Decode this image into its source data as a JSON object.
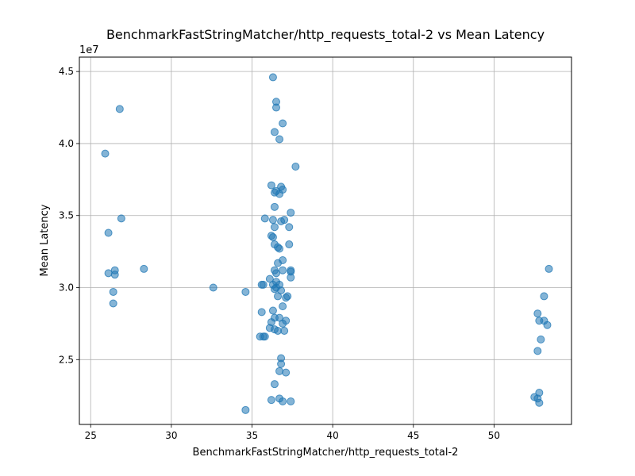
{
  "chart_data": {
    "type": "scatter",
    "title": "BenchmarkFastStringMatcher/http_requests_total-2 vs Mean Latency",
    "xlabel": "BenchmarkFastStringMatcher/http_requests_total-2",
    "ylabel": "Mean Latency",
    "y_multiplier_label": "1e7",
    "xlim": [
      24.3,
      54.8
    ],
    "ylim": [
      2.05,
      4.6
    ],
    "x_ticks": [
      25,
      30,
      35,
      40,
      45,
      50
    ],
    "x_tick_labels": [
      "25",
      "30",
      "35",
      "40",
      "45",
      "50"
    ],
    "y_ticks": [
      2.5,
      3.0,
      3.5,
      4.0,
      4.5
    ],
    "y_tick_labels": [
      "2.5",
      "3.0",
      "3.5",
      "4.0",
      "4.5"
    ],
    "grid": true,
    "point_color": "#1f77b4",
    "y_scale_factor": 10000000,
    "points": [
      [
        25.9,
        3.93
      ],
      [
        26.8,
        4.24
      ],
      [
        26.1,
        3.38
      ],
      [
        26.9,
        3.48
      ],
      [
        26.1,
        3.1
      ],
      [
        26.5,
        3.12
      ],
      [
        26.5,
        3.09
      ],
      [
        26.4,
        2.97
      ],
      [
        26.4,
        2.89
      ],
      [
        28.3,
        3.13
      ],
      [
        32.6,
        3.0
      ],
      [
        34.6,
        2.97
      ],
      [
        34.6,
        2.15
      ],
      [
        36.3,
        4.46
      ],
      [
        36.5,
        4.29
      ],
      [
        36.5,
        4.25
      ],
      [
        36.9,
        4.14
      ],
      [
        36.4,
        4.08
      ],
      [
        36.7,
        4.03
      ],
      [
        37.7,
        3.84
      ],
      [
        36.2,
        3.71
      ],
      [
        36.8,
        3.7
      ],
      [
        36.9,
        3.68
      ],
      [
        36.5,
        3.67
      ],
      [
        36.4,
        3.66
      ],
      [
        36.7,
        3.65
      ],
      [
        36.4,
        3.56
      ],
      [
        35.8,
        3.48
      ],
      [
        36.3,
        3.47
      ],
      [
        36.8,
        3.46
      ],
      [
        37.0,
        3.47
      ],
      [
        37.4,
        3.52
      ],
      [
        36.4,
        3.42
      ],
      [
        37.3,
        3.42
      ],
      [
        36.2,
        3.36
      ],
      [
        36.3,
        3.35
      ],
      [
        36.4,
        3.3
      ],
      [
        37.3,
        3.3
      ],
      [
        36.6,
        3.28
      ],
      [
        36.7,
        3.27
      ],
      [
        36.9,
        3.19
      ],
      [
        36.6,
        3.17
      ],
      [
        36.4,
        3.12
      ],
      [
        36.5,
        3.1
      ],
      [
        36.9,
        3.12
      ],
      [
        37.4,
        3.12
      ],
      [
        37.4,
        3.11
      ],
      [
        37.4,
        3.07
      ],
      [
        36.1,
        3.06
      ],
      [
        36.5,
        3.04
      ],
      [
        35.6,
        3.02
      ],
      [
        35.7,
        3.02
      ],
      [
        36.3,
        3.02
      ],
      [
        36.7,
        3.02
      ],
      [
        36.5,
        3.0
      ],
      [
        36.4,
        2.99
      ],
      [
        36.8,
        2.98
      ],
      [
        36.6,
        2.94
      ],
      [
        37.1,
        2.93
      ],
      [
        37.2,
        2.94
      ],
      [
        36.9,
        2.87
      ],
      [
        35.6,
        2.83
      ],
      [
        36.3,
        2.84
      ],
      [
        36.4,
        2.79
      ],
      [
        36.7,
        2.79
      ],
      [
        37.1,
        2.77
      ],
      [
        36.2,
        2.76
      ],
      [
        36.9,
        2.75
      ],
      [
        36.1,
        2.72
      ],
      [
        36.4,
        2.71
      ],
      [
        36.6,
        2.7
      ],
      [
        37.0,
        2.7
      ],
      [
        35.5,
        2.66
      ],
      [
        35.7,
        2.66
      ],
      [
        35.8,
        2.66
      ],
      [
        36.8,
        2.51
      ],
      [
        36.8,
        2.47
      ],
      [
        36.7,
        2.42
      ],
      [
        37.1,
        2.41
      ],
      [
        36.4,
        2.33
      ],
      [
        36.7,
        2.23
      ],
      [
        36.2,
        2.22
      ],
      [
        36.9,
        2.21
      ],
      [
        37.4,
        2.21
      ],
      [
        53.4,
        3.13
      ],
      [
        53.1,
        2.94
      ],
      [
        52.7,
        2.82
      ],
      [
        52.8,
        2.77
      ],
      [
        53.1,
        2.77
      ],
      [
        53.3,
        2.74
      ],
      [
        52.9,
        2.64
      ],
      [
        52.7,
        2.56
      ],
      [
        52.5,
        2.24
      ],
      [
        52.8,
        2.27
      ],
      [
        52.7,
        2.23
      ],
      [
        52.8,
        2.2
      ]
    ]
  }
}
